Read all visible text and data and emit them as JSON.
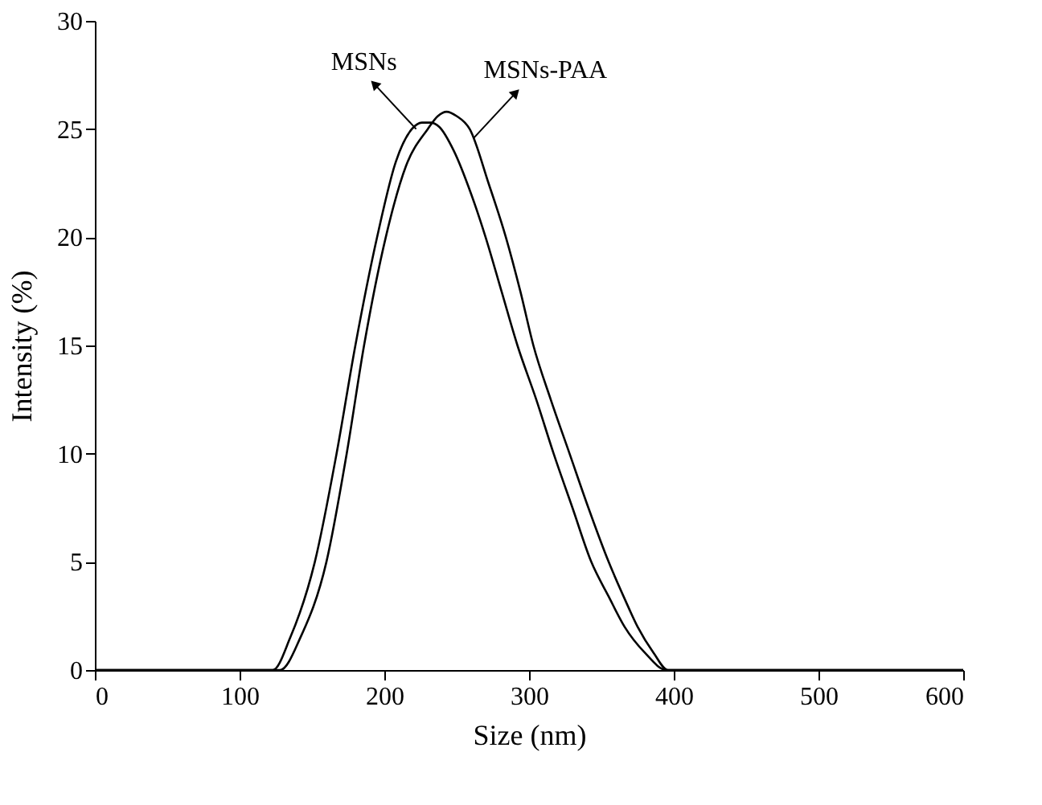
{
  "chart_data": {
    "type": "line",
    "xlabel": "Size (nm)",
    "ylabel": "Intensity (%)",
    "xlim": [
      0,
      600
    ],
    "xticks": [
      0,
      100,
      200,
      300,
      400,
      500,
      600
    ],
    "ylim": [
      0,
      30
    ],
    "yticks": [
      0,
      5,
      10,
      15,
      20,
      25,
      30
    ],
    "grid": false,
    "marker": "none",
    "line_style": "solid",
    "series": [
      {
        "color": "#000000",
        "x": [
          0,
          123,
          135,
          152,
          167,
          180,
          195,
          208,
          219,
          226,
          232,
          238,
          248,
          260,
          270,
          281,
          292,
          305,
          317,
          330,
          343,
          355,
          366,
          380,
          395,
          600
        ],
        "values": [
          0,
          0,
          1.5,
          5,
          10,
          15,
          20,
          23.5,
          25,
          25.3,
          25.3,
          25.1,
          24,
          22,
          20,
          17.5,
          15,
          12.5,
          10,
          7.5,
          5,
          3.4,
          2,
          0.8,
          0,
          0
        ]
      },
      {
        "color": "#000000",
        "x": [
          0,
          128,
          142,
          160,
          174,
          186,
          201,
          215,
          230,
          237,
          243,
          250,
          259,
          272,
          284,
          294,
          303,
          315,
          328,
          341,
          355,
          366,
          375,
          386,
          396,
          600
        ],
        "values": [
          0,
          0,
          1.5,
          5,
          10,
          15,
          20,
          23.3,
          25,
          25.6,
          25.8,
          25.6,
          25,
          22.5,
          20,
          17.5,
          15,
          12.5,
          10,
          7.5,
          5,
          3.3,
          2,
          0.8,
          0,
          0
        ]
      }
    ],
    "annotations": [
      {
        "text": "MSNs",
        "x": 222,
        "y": 25
      },
      {
        "text": "MSNs-PAA",
        "x": 262,
        "y": 24.6
      }
    ]
  }
}
